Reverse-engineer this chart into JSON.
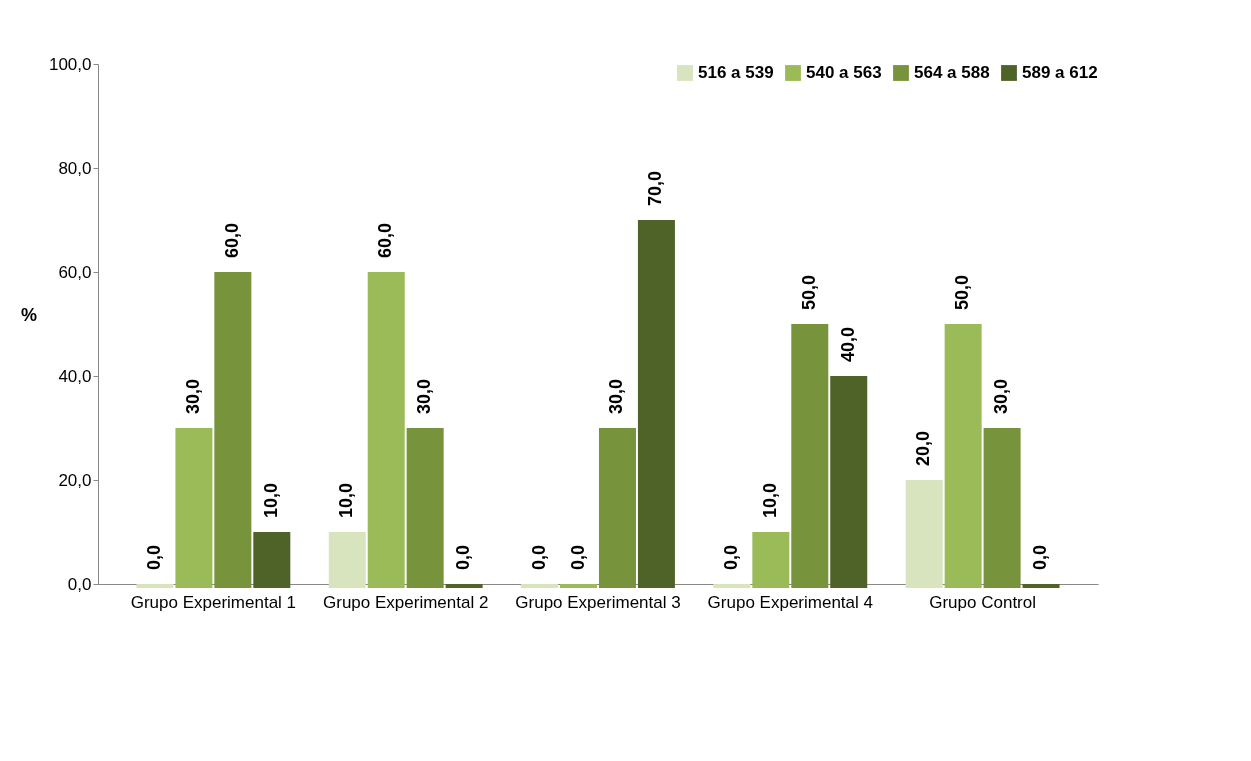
{
  "chart_data": {
    "type": "bar",
    "ylabel": "%",
    "categories": [
      "Grupo Experimental 1",
      "Grupo Experimental 2",
      "Grupo Experimental 3",
      "Grupo Experimental 4",
      "Grupo Control"
    ],
    "series": [
      {
        "name": "516 a 539",
        "color": "#d7e4bd",
        "values": [
          0,
          10,
          0,
          0,
          20
        ],
        "value_labels": [
          "0,0",
          "10,0",
          "0,0",
          "0,0",
          "20,0"
        ]
      },
      {
        "name": "540 a 563",
        "color": "#9bbb59",
        "values": [
          30,
          60,
          0,
          10,
          50
        ],
        "value_labels": [
          "30,0",
          "60,0",
          "0,0",
          "10,0",
          "50,0"
        ]
      },
      {
        "name": "564 a 588",
        "color": "#77933c",
        "values": [
          60,
          30,
          30,
          50,
          30
        ],
        "value_labels": [
          "60,0",
          "30,0",
          "30,0",
          "50,0",
          "30,0"
        ]
      },
      {
        "name": "589 a 612",
        "color": "#4f6228",
        "values": [
          10,
          0,
          70,
          40,
          0
        ],
        "value_labels": [
          "10,0",
          "0,0",
          "70,0",
          "40,0",
          "0,0"
        ]
      }
    ],
    "ylim": [
      0,
      100
    ],
    "yticks": [
      {
        "value": 0,
        "label": "0,0"
      },
      {
        "value": 20,
        "label": "20,0"
      },
      {
        "value": 40,
        "label": "40,0"
      },
      {
        "value": 60,
        "label": "60,0"
      },
      {
        "value": 80,
        "label": "80,0"
      },
      {
        "value": 100,
        "label": "100,0"
      }
    ],
    "legend": "top right",
    "grid": false
  }
}
